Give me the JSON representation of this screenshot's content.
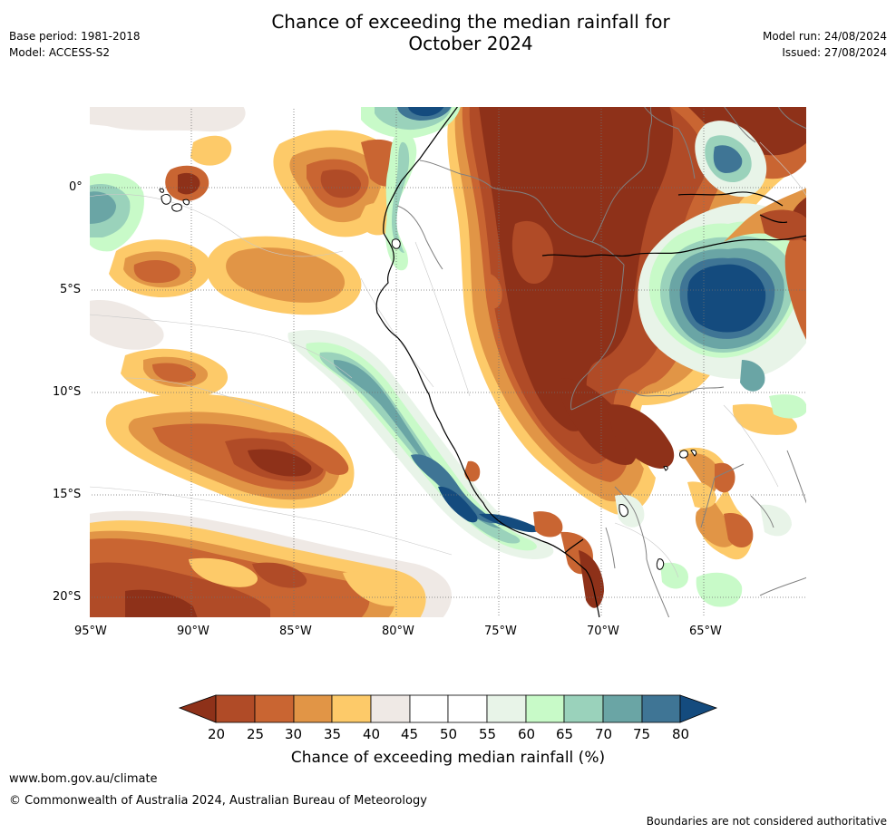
{
  "header": {
    "title_line1": "Chance of exceeding the median rainfall for",
    "title_line2": "October 2024",
    "base_period": "Base period: 1981-2018",
    "model": "Model: ACCESS-S2",
    "model_run": "Model run: 24/08/2024",
    "issued": "Issued: 27/08/2024"
  },
  "map": {
    "region": "Western South America",
    "lat_labels": [
      "0°",
      "5°S",
      "10°S",
      "15°S",
      "20°S"
    ],
    "lon_labels": [
      "95°W",
      "90°W",
      "85°W",
      "80°W",
      "75°W",
      "70°W",
      "65°W"
    ],
    "colors": {
      "20": "#8e3119",
      "25": "#b04b27",
      "30": "#c96532",
      "35": "#e19546",
      "40": "#fdca69",
      "45": "#efe9e5",
      "50": "#ffffff",
      "55": "#ffffff",
      "60": "#e8f4e8",
      "65": "#c8fac8",
      "70": "#9ad2bb",
      "75": "#6aa5a5",
      "80": "#3f7595",
      "gt80": "#144b7e",
      "coast": "#000000",
      "border": "#808080"
    }
  },
  "colorbar": {
    "ticks": [
      "20",
      "25",
      "30",
      "35",
      "40",
      "45",
      "50",
      "55",
      "60",
      "65",
      "70",
      "75",
      "80"
    ],
    "title": "Chance of exceeding median rainfall (%)"
  },
  "footer": {
    "url": "www.bom.gov.au/climate",
    "copyright": "© Commonwealth of Australia 2024, Australian Bureau of Meteorology",
    "disclaimer": "Boundaries are not considered authoritative"
  }
}
